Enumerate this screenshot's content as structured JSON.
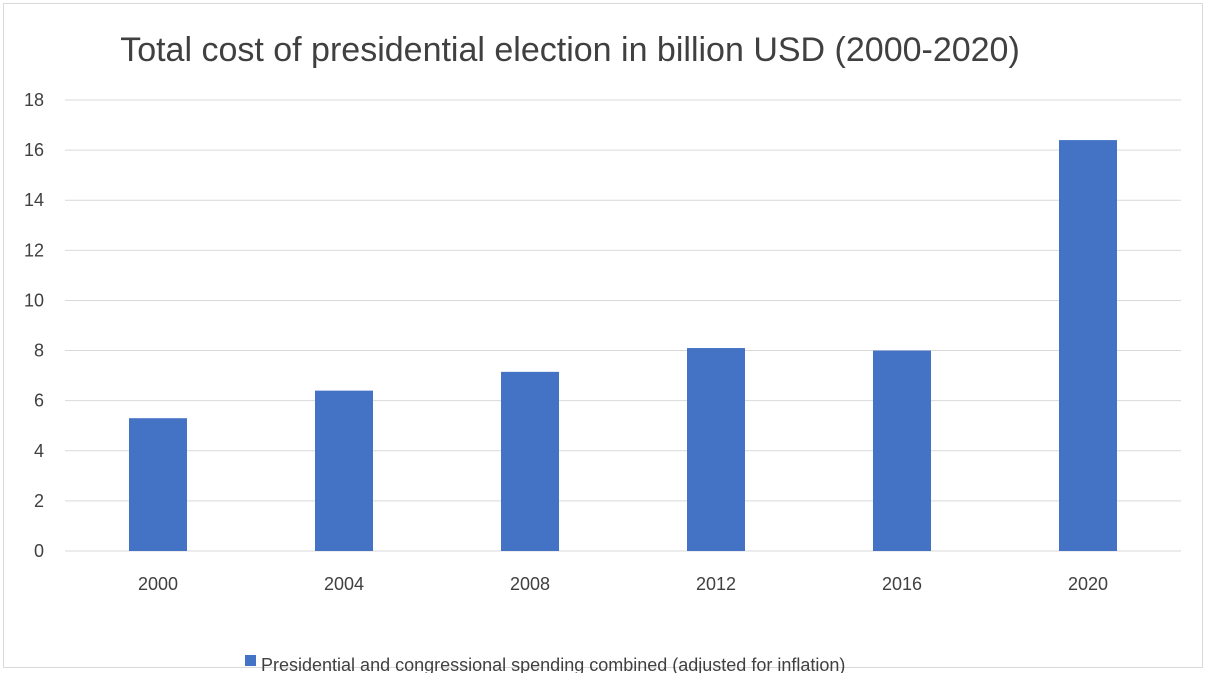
{
  "chart_data": {
    "type": "bar",
    "title": "Total cost of presidential election in billion USD (2000-2020)",
    "xlabel": "",
    "ylabel": "",
    "categories": [
      "2000",
      "2004",
      "2008",
      "2012",
      "2016",
      "2020"
    ],
    "series": [
      {
        "name": "Presidential and congressional spending combined (adjusted for inflation)",
        "values": [
          5.3,
          6.4,
          7.15,
          8.1,
          8.0,
          16.4
        ],
        "color": "#4472C4"
      }
    ],
    "ylim": [
      0,
      18
    ],
    "yticks": [
      "0",
      "2",
      "4",
      "6",
      "8",
      "10",
      "12",
      "14",
      "16",
      "18"
    ],
    "grid": true,
    "legend": "bottom"
  }
}
